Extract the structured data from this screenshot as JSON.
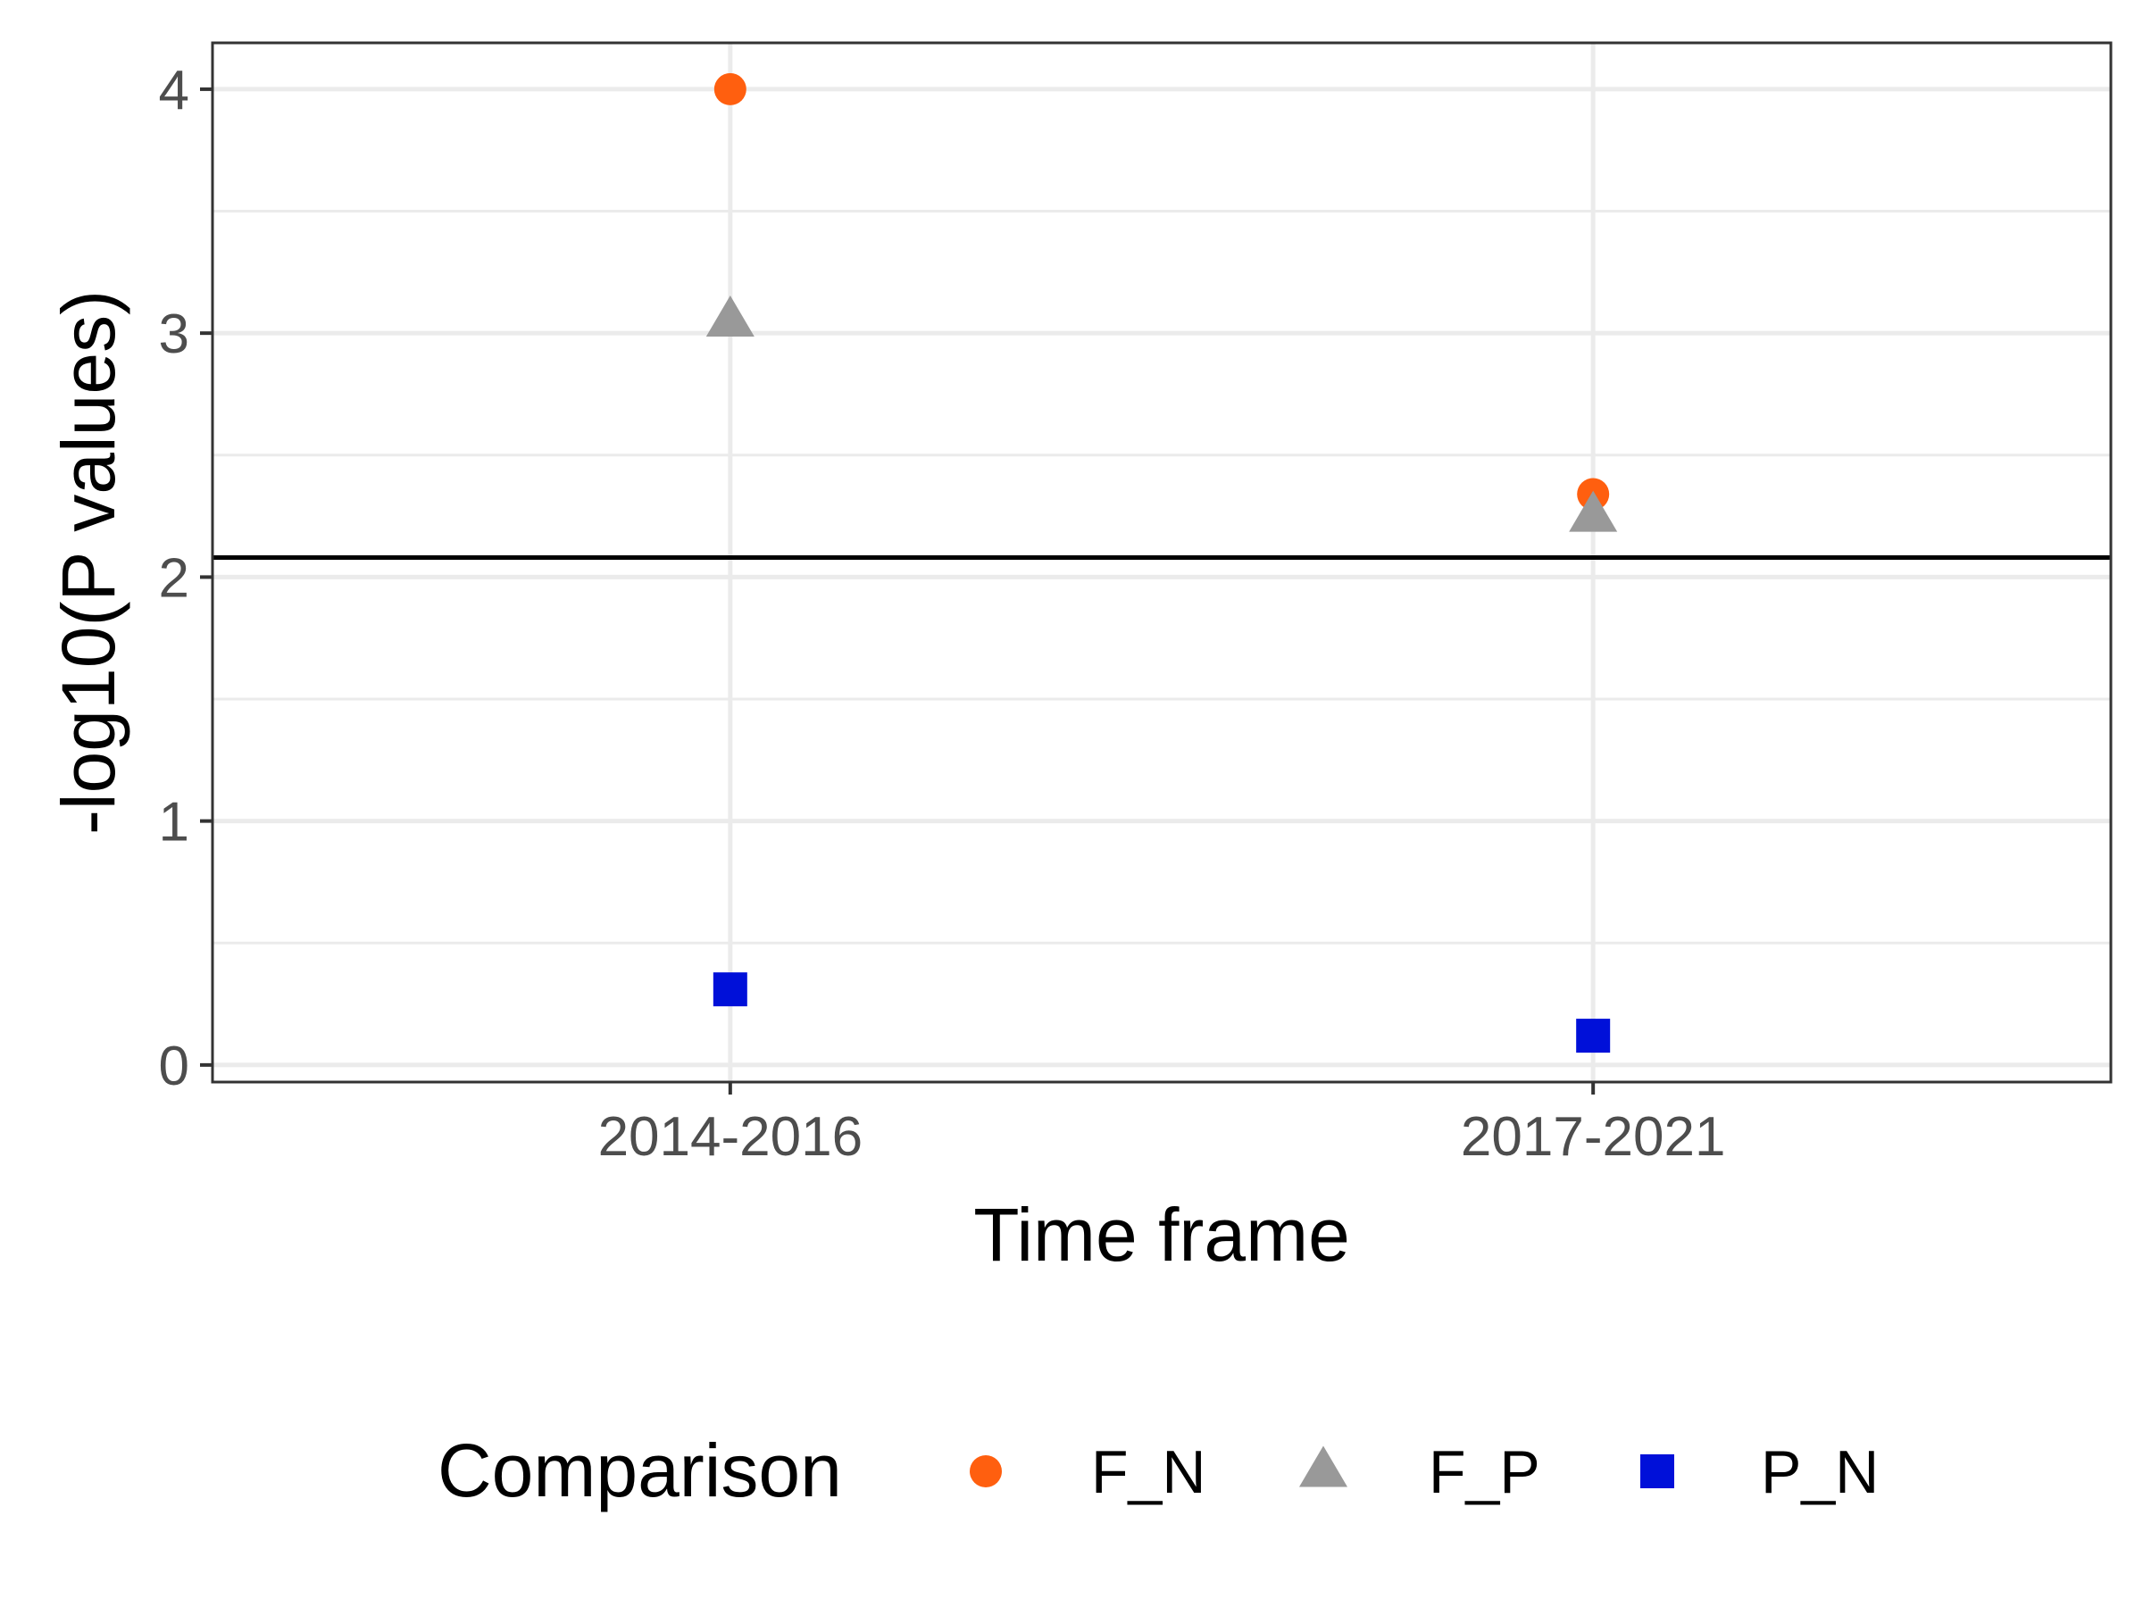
{
  "chart_data": {
    "type": "scatter",
    "title": "",
    "xlabel": "Time frame",
    "ylabel": "-log10(P values)",
    "categories": [
      "2014-2016",
      "2017-2021"
    ],
    "ylim": [
      -0.07,
      4.19
    ],
    "yticks": [
      0,
      1,
      2,
      3,
      4
    ],
    "grid": true,
    "reference_line": {
      "y": 2.08
    },
    "legend": {
      "title": "Comparison",
      "position": "bottom"
    },
    "series": [
      {
        "name": "F_N",
        "shape": "circle",
        "color": "#FF5F0F",
        "values": [
          4.0,
          2.34
        ]
      },
      {
        "name": "F_P",
        "shape": "triangle",
        "color": "#999999",
        "values": [
          3.05,
          2.25
        ]
      },
      {
        "name": "P_N",
        "shape": "square",
        "color": "#0010D9",
        "values": [
          0.31,
          0.12
        ]
      }
    ]
  }
}
